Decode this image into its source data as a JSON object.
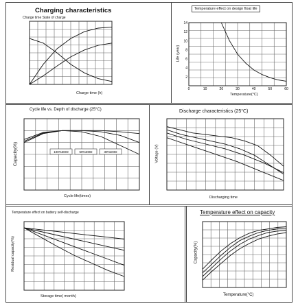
{
  "figures": {
    "p1_title": "Charging characteristics",
    "p1_note": "Charge time  State of charge",
    "p1_xlabel": "Charge time (h)",
    "p2_title": "Temperature effect on design float life",
    "p2_xlabel": "Temperature(°C)",
    "p2_ylabel": "Life (year)",
    "p3_title": "Cycle life vs. Depth of discharge (25°C)",
    "p3_xlabel": "Cycle life(times)",
    "p3_ylabel": "Capacity(%)",
    "p4_title": "Discharge characteristics (25°C)",
    "p4_xlabel": "Discharging time",
    "p4_ylabel": "Voltage (V)",
    "p5_title": "Temperature effect on battery self-discharge",
    "p5_xlabel": "Storage time( month)",
    "p5_ylabel": "Residual capacity(%)",
    "p6_title": "Temperature effect on capacity",
    "p6_xlabel": "Temperature(°C)",
    "p6_ylabel": "Capacity(%)"
  },
  "chart_data": [
    {
      "type": "line",
      "title": "Charging characteristics",
      "xlabel": "Charge time (h)",
      "ylabel": "",
      "grid": true,
      "series": [
        {
          "name": "",
          "values": [
            0,
            35,
            62,
            80,
            92,
            98,
            100
          ]
        },
        {
          "name": "",
          "values": [
            0,
            15,
            32,
            48,
            60,
            68,
            72
          ]
        },
        {
          "name": "",
          "values": [
            80,
            72,
            55,
            35,
            20,
            10,
            5
          ]
        }
      ]
    },
    {
      "type": "line",
      "title": "Temperature effect on design float life",
      "xlabel": "Temperature(°C)",
      "ylabel": "Life (year)",
      "x_ticks": [
        "0",
        "10",
        "20",
        "30",
        "40",
        "50",
        "60"
      ],
      "y_ticks": [
        "2",
        "4",
        "6",
        "8",
        "10",
        "12",
        "14"
      ],
      "ylim": [
        0,
        14
      ],
      "xlim": [
        0,
        60
      ],
      "grid": true,
      "series": [
        {
          "name": "",
          "x": [
            20,
            25,
            30,
            35,
            40,
            45,
            50,
            55,
            60
          ],
          "y": [
            14,
            10,
            7,
            5,
            3.5,
            2.5,
            1.8,
            1.3,
            1
          ]
        }
      ]
    },
    {
      "type": "line",
      "title": "Cycle life vs. Depth of discharge (25°C)",
      "xlabel": "Cycle life(times)",
      "ylabel": "Capacity(%)",
      "legend": [
        "100%DOD",
        "50%DOD",
        "30%DOD"
      ],
      "grid": true,
      "series": [
        {
          "name": "100%DOD",
          "values": [
            80,
            95,
            100,
            98,
            90,
            75,
            60
          ]
        },
        {
          "name": "50%DOD",
          "values": [
            82,
            96,
            100,
            100,
            98,
            92,
            80
          ]
        },
        {
          "name": "30%DOD",
          "values": [
            85,
            97,
            100,
            100,
            100,
            98,
            95
          ]
        }
      ]
    },
    {
      "type": "line",
      "title": "Discharge characteristics (25°C)",
      "xlabel": "Discharging time",
      "ylabel": "Voltage (V)",
      "grid": true,
      "series": [
        {
          "name": "",
          "values": [
            13.0,
            12.8,
            12.6,
            12.5,
            12.4,
            12.3,
            12.1,
            11.8,
            11.2,
            10.5
          ]
        },
        {
          "name": "",
          "values": [
            12.8,
            12.5,
            12.3,
            12.1,
            11.9,
            11.6,
            11.2,
            10.6,
            10.0
          ]
        },
        {
          "name": "",
          "values": [
            12.6,
            12.2,
            11.9,
            11.6,
            11.2,
            10.7,
            10.1
          ]
        },
        {
          "name": "",
          "values": [
            12.3,
            11.8,
            11.3,
            10.8,
            10.2,
            9.6
          ]
        }
      ]
    },
    {
      "type": "line",
      "title": "Temperature effect on battery self-discharge",
      "xlabel": "Storage time( month)",
      "ylabel": "Residual capacity(%)",
      "grid": true,
      "series": [
        {
          "name": "",
          "values": [
            100,
            97,
            94,
            91,
            88,
            85,
            82
          ]
        },
        {
          "name": "",
          "values": [
            100,
            94,
            88,
            82,
            76,
            70,
            64
          ]
        },
        {
          "name": "",
          "values": [
            100,
            90,
            80,
            70,
            60,
            50,
            40
          ]
        },
        {
          "name": "",
          "values": [
            100,
            85,
            70,
            56,
            44,
            32,
            22
          ]
        }
      ]
    },
    {
      "type": "line",
      "title": "Temperature effect on capacity",
      "xlabel": "Temperature(°C)",
      "ylabel": "Capacity(%)",
      "grid": true,
      "series": [
        {
          "name": "",
          "values": [
            45,
            58,
            70,
            80,
            88,
            94,
            98,
            100,
            102,
            103
          ]
        },
        {
          "name": "",
          "values": [
            40,
            52,
            64,
            75,
            84,
            90,
            95,
            98,
            100,
            101
          ]
        },
        {
          "name": "",
          "values": [
            35,
            47,
            59,
            70,
            79,
            86,
            91,
            95,
            97,
            98
          ]
        },
        {
          "name": "",
          "values": [
            30,
            42,
            53,
            64,
            73,
            80,
            86,
            90,
            93,
            95
          ]
        }
      ]
    }
  ]
}
